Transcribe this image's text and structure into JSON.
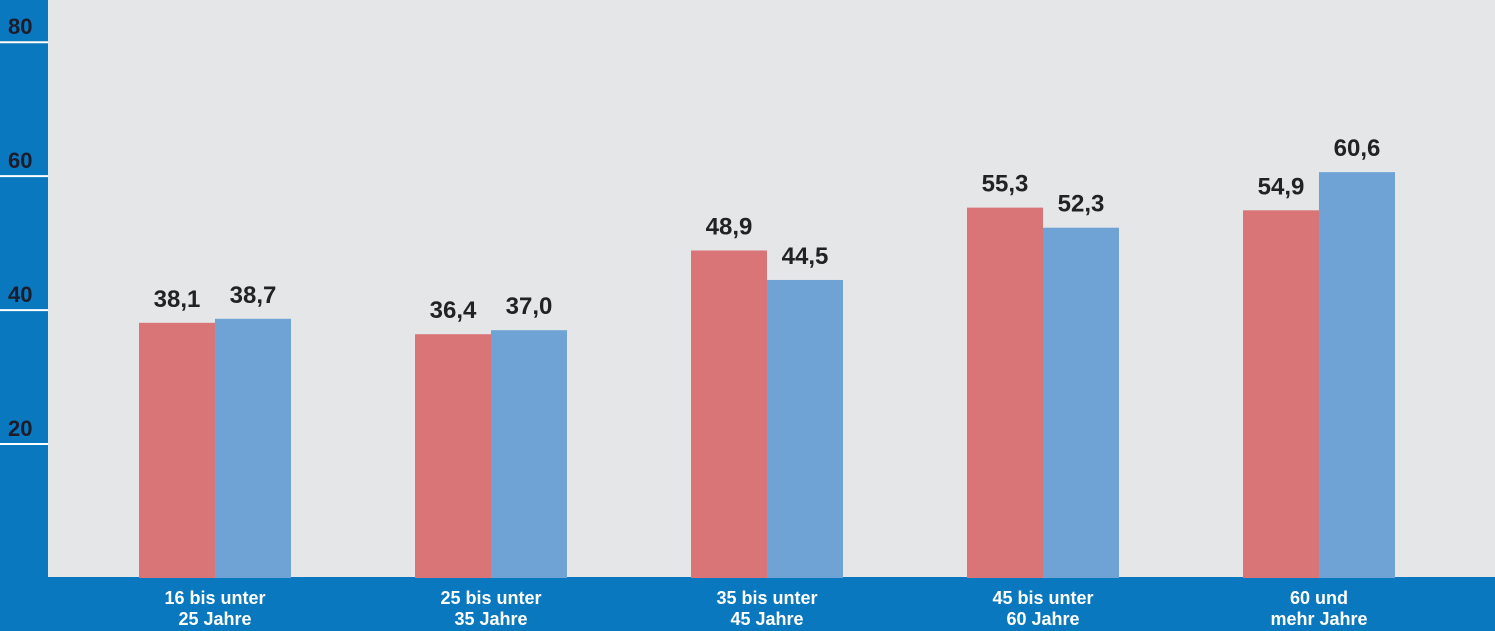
{
  "chart_data": {
    "type": "bar",
    "categories": [
      "16 bis unter\n25 Jahre",
      "25 bis unter\n35 Jahre",
      "35 bis unter\n45 Jahre",
      "45 bis unter\n60 Jahre",
      "60 und\nmehr Jahre"
    ],
    "series": [
      {
        "color": "#d97577",
        "values": [
          38.1,
          36.4,
          48.9,
          55.3,
          54.9
        ],
        "value_labels": [
          "38,1",
          "36,4",
          "48,9",
          "55,3",
          "54,9"
        ]
      },
      {
        "color": "#6fa3d6",
        "values": [
          38.7,
          37.0,
          44.5,
          52.3,
          60.6
        ],
        "value_labels": [
          "38,7",
          "37,0",
          "44,5",
          "52,3",
          "60,6"
        ]
      }
    ],
    "ylim": [
      0,
      86.3
    ],
    "yticks": [
      20,
      40,
      60,
      80
    ]
  }
}
